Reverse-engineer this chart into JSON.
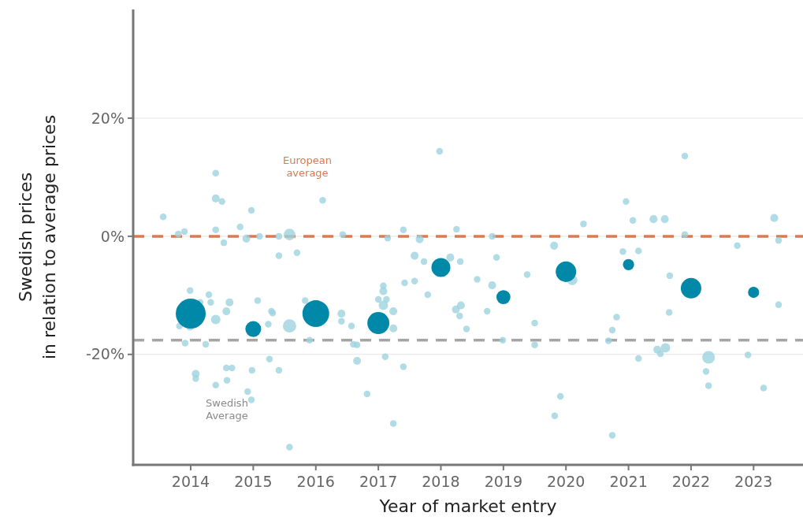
{
  "chart_data": {
    "type": "bubble",
    "xlabel": "Year of market entry",
    "ylabel": "Swedish prices\nin relation to average prices",
    "xlim": [
      2013.08,
      2023.79
    ],
    "xticks": [
      2014,
      2015,
      2016,
      2017,
      2018,
      2019,
      2020,
      2021,
      2022,
      2023
    ],
    "ylim": [
      -38.7,
      38.4
    ],
    "yticks": [
      {
        "value": -20,
        "label": "-20%"
      },
      {
        "value": 0,
        "label": "0%"
      },
      {
        "value": 20,
        "label": "20%"
      }
    ],
    "grid": "y",
    "ref_lines": [
      {
        "axis": "y",
        "value": 0,
        "label": "European average",
        "color": "#d97a52",
        "line_style": "dashed"
      },
      {
        "axis": "y",
        "value": -17.6,
        "label": "Swedish Average",
        "color": "#a6a6a6",
        "line_style": "dashed"
      }
    ],
    "series": [
      {
        "color": "#9dd3de",
        "x": [
          2013.56,
          2013.8,
          2013.9,
          2014.4,
          2014.4,
          2014.5,
          2014.4,
          2014.53,
          2014.79,
          2014.89,
          2014.97,
          2015.1,
          2015.41,
          2015.58,
          2015.41,
          2015.7,
          2016.11,
          2016.43,
          2017.15,
          2017.4,
          2017.58,
          2017.66,
          2017.73,
          2017.98,
          2018.25,
          2018.15,
          2018.31,
          2018.58,
          2018.82,
          2018.89,
          2018.82,
          2019.38,
          2019.81,
          2020.1,
          2020.28,
          2020.96,
          2021.07,
          2021.16,
          2020.91,
          2021.4,
          2021.58,
          2021.9,
          2021.9,
          2022.74,
          2023.33,
          2023.4,
          2021.66,
          2023.4,
          2021.65,
          2020.81,
          2020.74,
          2020.68,
          2021.16,
          2021.46,
          2021.51,
          2021.59,
          2022.28,
          2022.24,
          2022.28,
          2022.91,
          2023.16,
          2020.74,
          2017.08,
          2017.08,
          2017.0,
          2017.13,
          2017.08,
          2017.24,
          2017.24,
          2017.79,
          2018.24,
          2018.32,
          2018.3,
          2018.74,
          2018.41,
          2019.5,
          2018.99,
          2019.5,
          2017.11,
          2017.4,
          2016.82,
          2017.24,
          2019.91,
          2019.82,
          2016.66,
          2016.66,
          2017.42,
          2017.58,
          2013.99,
          2014.29,
          2014.15,
          2014.32,
          2014.62,
          2014.57,
          2014.4,
          2013.82,
          2013.99,
          2015.07,
          2015.29,
          2015.31,
          2015.24,
          2015.58,
          2015.83,
          2016.41,
          2016.41,
          2016.57,
          2013.91,
          2014.24,
          2015.9,
          2016.6,
          2014.08,
          2014.08,
          2014.4,
          2014.57,
          2014.66,
          2014.58,
          2014.98,
          2015.26,
          2015.41,
          2014.91,
          2014.97,
          2015.58
        ],
        "values": [
          3.3,
          0.4,
          0.8,
          10.7,
          6.4,
          5.9,
          1.1,
          -1.1,
          1.6,
          -0.4,
          4.4,
          0,
          0,
          0.3,
          -3.3,
          -2.8,
          6.1,
          0.3,
          -0.3,
          1.1,
          -3.3,
          -0.5,
          -4.3,
          14.4,
          1.2,
          -3.6,
          -4.3,
          -7.3,
          -8.3,
          -3.6,
          0,
          -6.5,
          -1.6,
          -7.4,
          2.1,
          5.9,
          2.7,
          -2.5,
          -2.6,
          2.9,
          2.9,
          13.6,
          0.3,
          -1.6,
          3.1,
          -0.7,
          -6.7,
          -11.6,
          -12.9,
          -13.7,
          -15.9,
          -17.7,
          -20.7,
          -19.2,
          -19.9,
          -18.9,
          -20.5,
          -22.9,
          -25.3,
          -20.1,
          -25.7,
          -33.7,
          -8.4,
          -9.3,
          -10.7,
          -10.7,
          -11.7,
          -12.7,
          -15.6,
          -9.9,
          -12.4,
          -11.7,
          -13.5,
          -12.7,
          -15.7,
          -14.7,
          -17.6,
          -18.4,
          -20.4,
          -22.1,
          -26.7,
          -31.7,
          -27.1,
          -30.4,
          -18.4,
          -21.1,
          -7.9,
          -7.6,
          -9.2,
          -9.9,
          -11.2,
          -11.2,
          -11.2,
          -12.7,
          -14.1,
          -15.2,
          -15.3,
          -10.9,
          -12.7,
          -13,
          -14.9,
          -15.2,
          -10.9,
          -13.1,
          -14.4,
          -15.2,
          -18.1,
          -18.3,
          -17.6,
          -18.3,
          -23.3,
          -24.1,
          -25.2,
          -22.3,
          -22.3,
          -24.4,
          -22.7,
          -20.8,
          -22.7,
          -26.3,
          -27.7,
          -35.7
        ],
        "sizes": [
          0.05,
          0.05,
          0.05,
          0.05,
          0.07,
          0.05,
          0.05,
          0.05,
          0.05,
          0.07,
          0.05,
          0.05,
          0.05,
          0.15,
          0.05,
          0.05,
          0.05,
          0.05,
          0.05,
          0.05,
          0.07,
          0.07,
          0.05,
          0.05,
          0.05,
          0.07,
          0.05,
          0.05,
          0.07,
          0.05,
          0.05,
          0.05,
          0.07,
          0.12,
          0.05,
          0.05,
          0.05,
          0.05,
          0.05,
          0.07,
          0.07,
          0.05,
          0.05,
          0.05,
          0.07,
          0.05,
          0.05,
          0.05,
          0.05,
          0.05,
          0.05,
          0.05,
          0.05,
          0.07,
          0.05,
          0.1,
          0.18,
          0.05,
          0.05,
          0.05,
          0.05,
          0.05,
          0.05,
          0.07,
          0.05,
          0.05,
          0.1,
          0.07,
          0.07,
          0.05,
          0.07,
          0.07,
          0.05,
          0.05,
          0.05,
          0.05,
          0.05,
          0.05,
          0.05,
          0.05,
          0.05,
          0.05,
          0.05,
          0.05,
          0.05,
          0.07,
          0.05,
          0.05,
          0.05,
          0.05,
          0.05,
          0.05,
          0.07,
          0.07,
          0.1,
          0.05,
          0.07,
          0.05,
          0.05,
          0.05,
          0.05,
          0.2,
          0.05,
          0.07,
          0.05,
          0.05,
          0.05,
          0.05,
          0.05,
          0.05,
          0.07,
          0.05,
          0.05,
          0.05,
          0.05,
          0.05,
          0.05,
          0.05,
          0.05,
          0.05,
          0.05,
          0.05
        ]
      },
      {
        "color": "#0088a8",
        "x": [
          2014,
          2015,
          2016,
          2017,
          2018,
          2019,
          2020,
          2021,
          2022,
          2023
        ],
        "values": [
          -13.1,
          -15.7,
          -13.1,
          -14.7,
          -5.3,
          -10.3,
          -6.0,
          -4.8,
          -8.8,
          -9.5
        ],
        "sizes": [
          1,
          0.28,
          0.8,
          0.54,
          0.4,
          0.22,
          0.47,
          0.14,
          0.47,
          0.14
        ]
      }
    ]
  }
}
